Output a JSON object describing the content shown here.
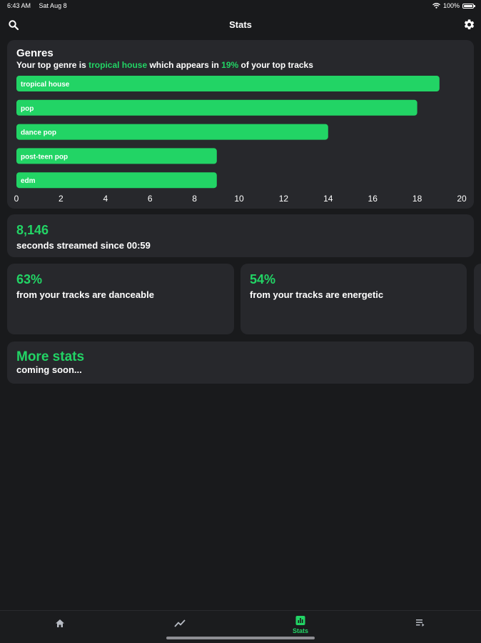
{
  "status": {
    "time": "6:43 AM",
    "date": "Sat Aug 8",
    "battery": "100%",
    "battery_level": 1.0
  },
  "header": {
    "title": "Stats"
  },
  "genres": {
    "title": "Genres",
    "subtitle_prefix": "Your top genre is ",
    "top_genre": "tropical house",
    "subtitle_mid": " which appears in ",
    "top_percent": "19%",
    "subtitle_suffix": " of your top tracks"
  },
  "chart_data": {
    "type": "bar",
    "orientation": "horizontal",
    "categories": [
      "tropical house",
      "pop",
      "dance pop",
      "post-teen pop",
      "edm"
    ],
    "values": [
      19,
      18,
      14,
      9,
      9
    ],
    "xlim": [
      0,
      20
    ],
    "xticks": [
      0,
      2,
      4,
      6,
      8,
      10,
      12,
      14,
      16,
      18,
      20
    ],
    "grid": false,
    "bar_color": "#22d465"
  },
  "seconds": {
    "value": "8,146",
    "label": "seconds streamed since 00:59"
  },
  "danceable": {
    "value": "63%",
    "label": "from your tracks are danceable"
  },
  "energetic": {
    "value": "54%",
    "label": "from your tracks are energetic"
  },
  "more": {
    "title": "More stats",
    "label": "coming soon..."
  },
  "tabs": [
    {
      "icon": "home-icon",
      "label": ""
    },
    {
      "icon": "trending-icon",
      "label": ""
    },
    {
      "icon": "stats-icon",
      "label": "Stats",
      "active": true
    },
    {
      "icon": "queue-icon",
      "label": ""
    }
  ],
  "colors": {
    "accent": "#22d465",
    "card": "#27282c",
    "background": "#191a1c"
  }
}
